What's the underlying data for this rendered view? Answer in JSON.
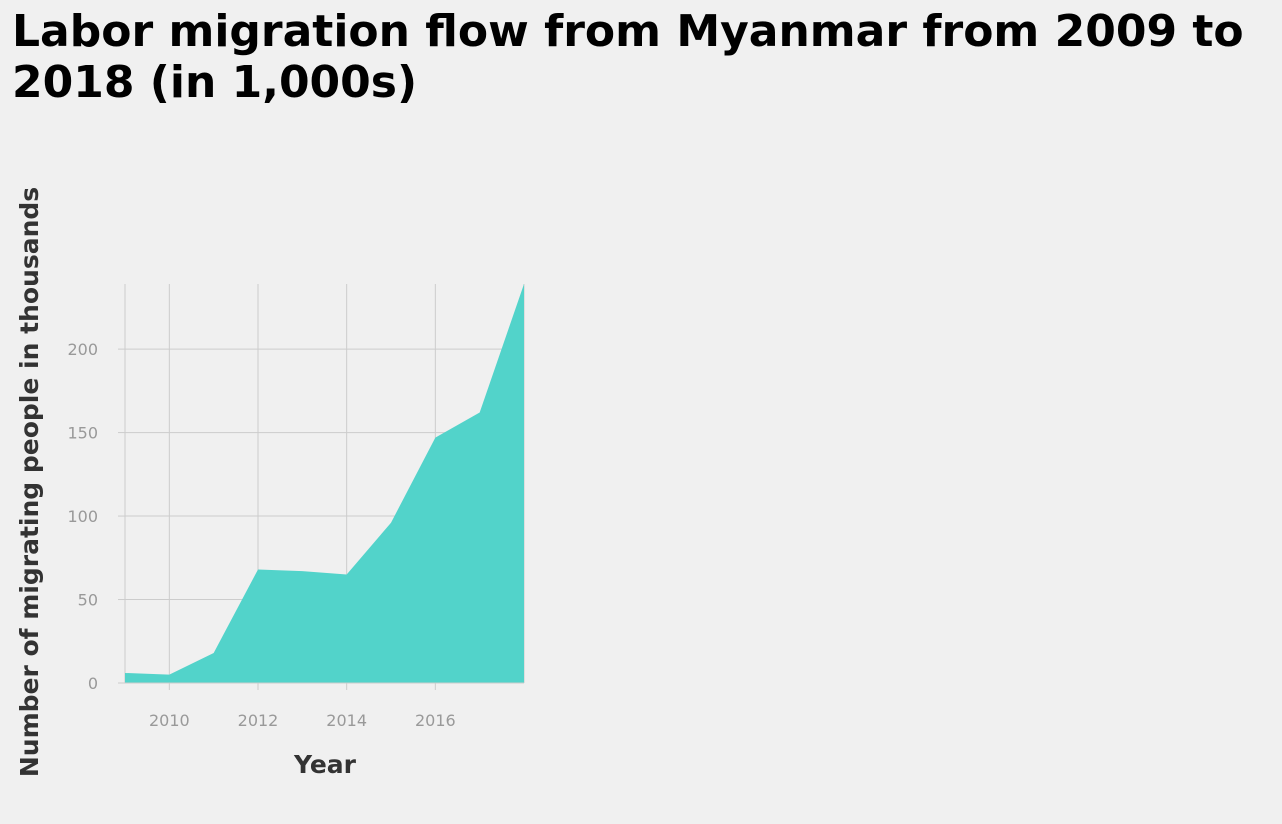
{
  "chart_data": {
    "type": "area",
    "title": "Labor migration flow from Myanmar from 2009 to 2018 (in 1,000s)",
    "xlabel": "Year",
    "ylabel": "Number of migrating people in thousands",
    "x": [
      2009,
      2010,
      2011,
      2012,
      2013,
      2014,
      2015,
      2016,
      2017,
      2018
    ],
    "series": [
      {
        "values": [
          6,
          5,
          18,
          68,
          67,
          65,
          96,
          147,
          162,
          239
        ]
      }
    ],
    "xlim": [
      2009,
      2018
    ],
    "ylim": [
      0,
      239
    ],
    "x_ticks": [
      2010,
      2012,
      2014,
      2016
    ],
    "y_ticks": [
      0,
      50,
      100,
      150,
      200
    ],
    "grid": true,
    "colors": {
      "fill": "#52d3ca",
      "grid": "#cccccc",
      "background": "#f0f0f0"
    }
  }
}
